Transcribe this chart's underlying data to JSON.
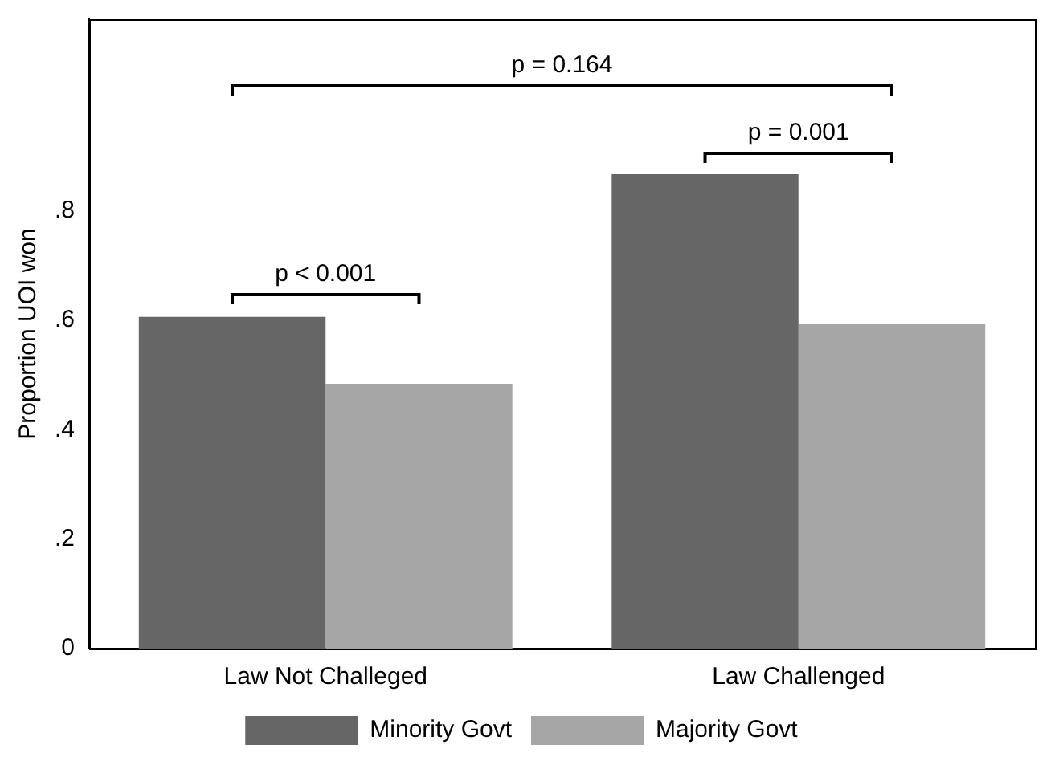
{
  "chart_data": {
    "type": "bar",
    "ylabel": "Proportion UOI won",
    "categories": [
      "Law Not Challeged",
      "Law Challenged"
    ],
    "series": [
      {
        "name": "Minority Govt",
        "color": "#666666",
        "values": [
          0.606,
          0.867
        ]
      },
      {
        "name": "Majority Govt",
        "color": "#a6a6a6",
        "values": [
          0.484,
          0.594
        ]
      }
    ],
    "ylim": [
      0,
      1.15
    ],
    "yticks": [
      {
        "value": 0,
        "label": "0"
      },
      {
        "value": 0.2,
        "label": ".2"
      },
      {
        "value": 0.4,
        "label": ".4"
      },
      {
        "value": 0.6,
        "label": ".6"
      },
      {
        "value": 0.8,
        "label": ".8"
      }
    ],
    "grid": false,
    "legend": "bottom",
    "annotations": [
      "p < 0.001",
      "p = 0.001",
      "p = 0.164"
    ]
  }
}
